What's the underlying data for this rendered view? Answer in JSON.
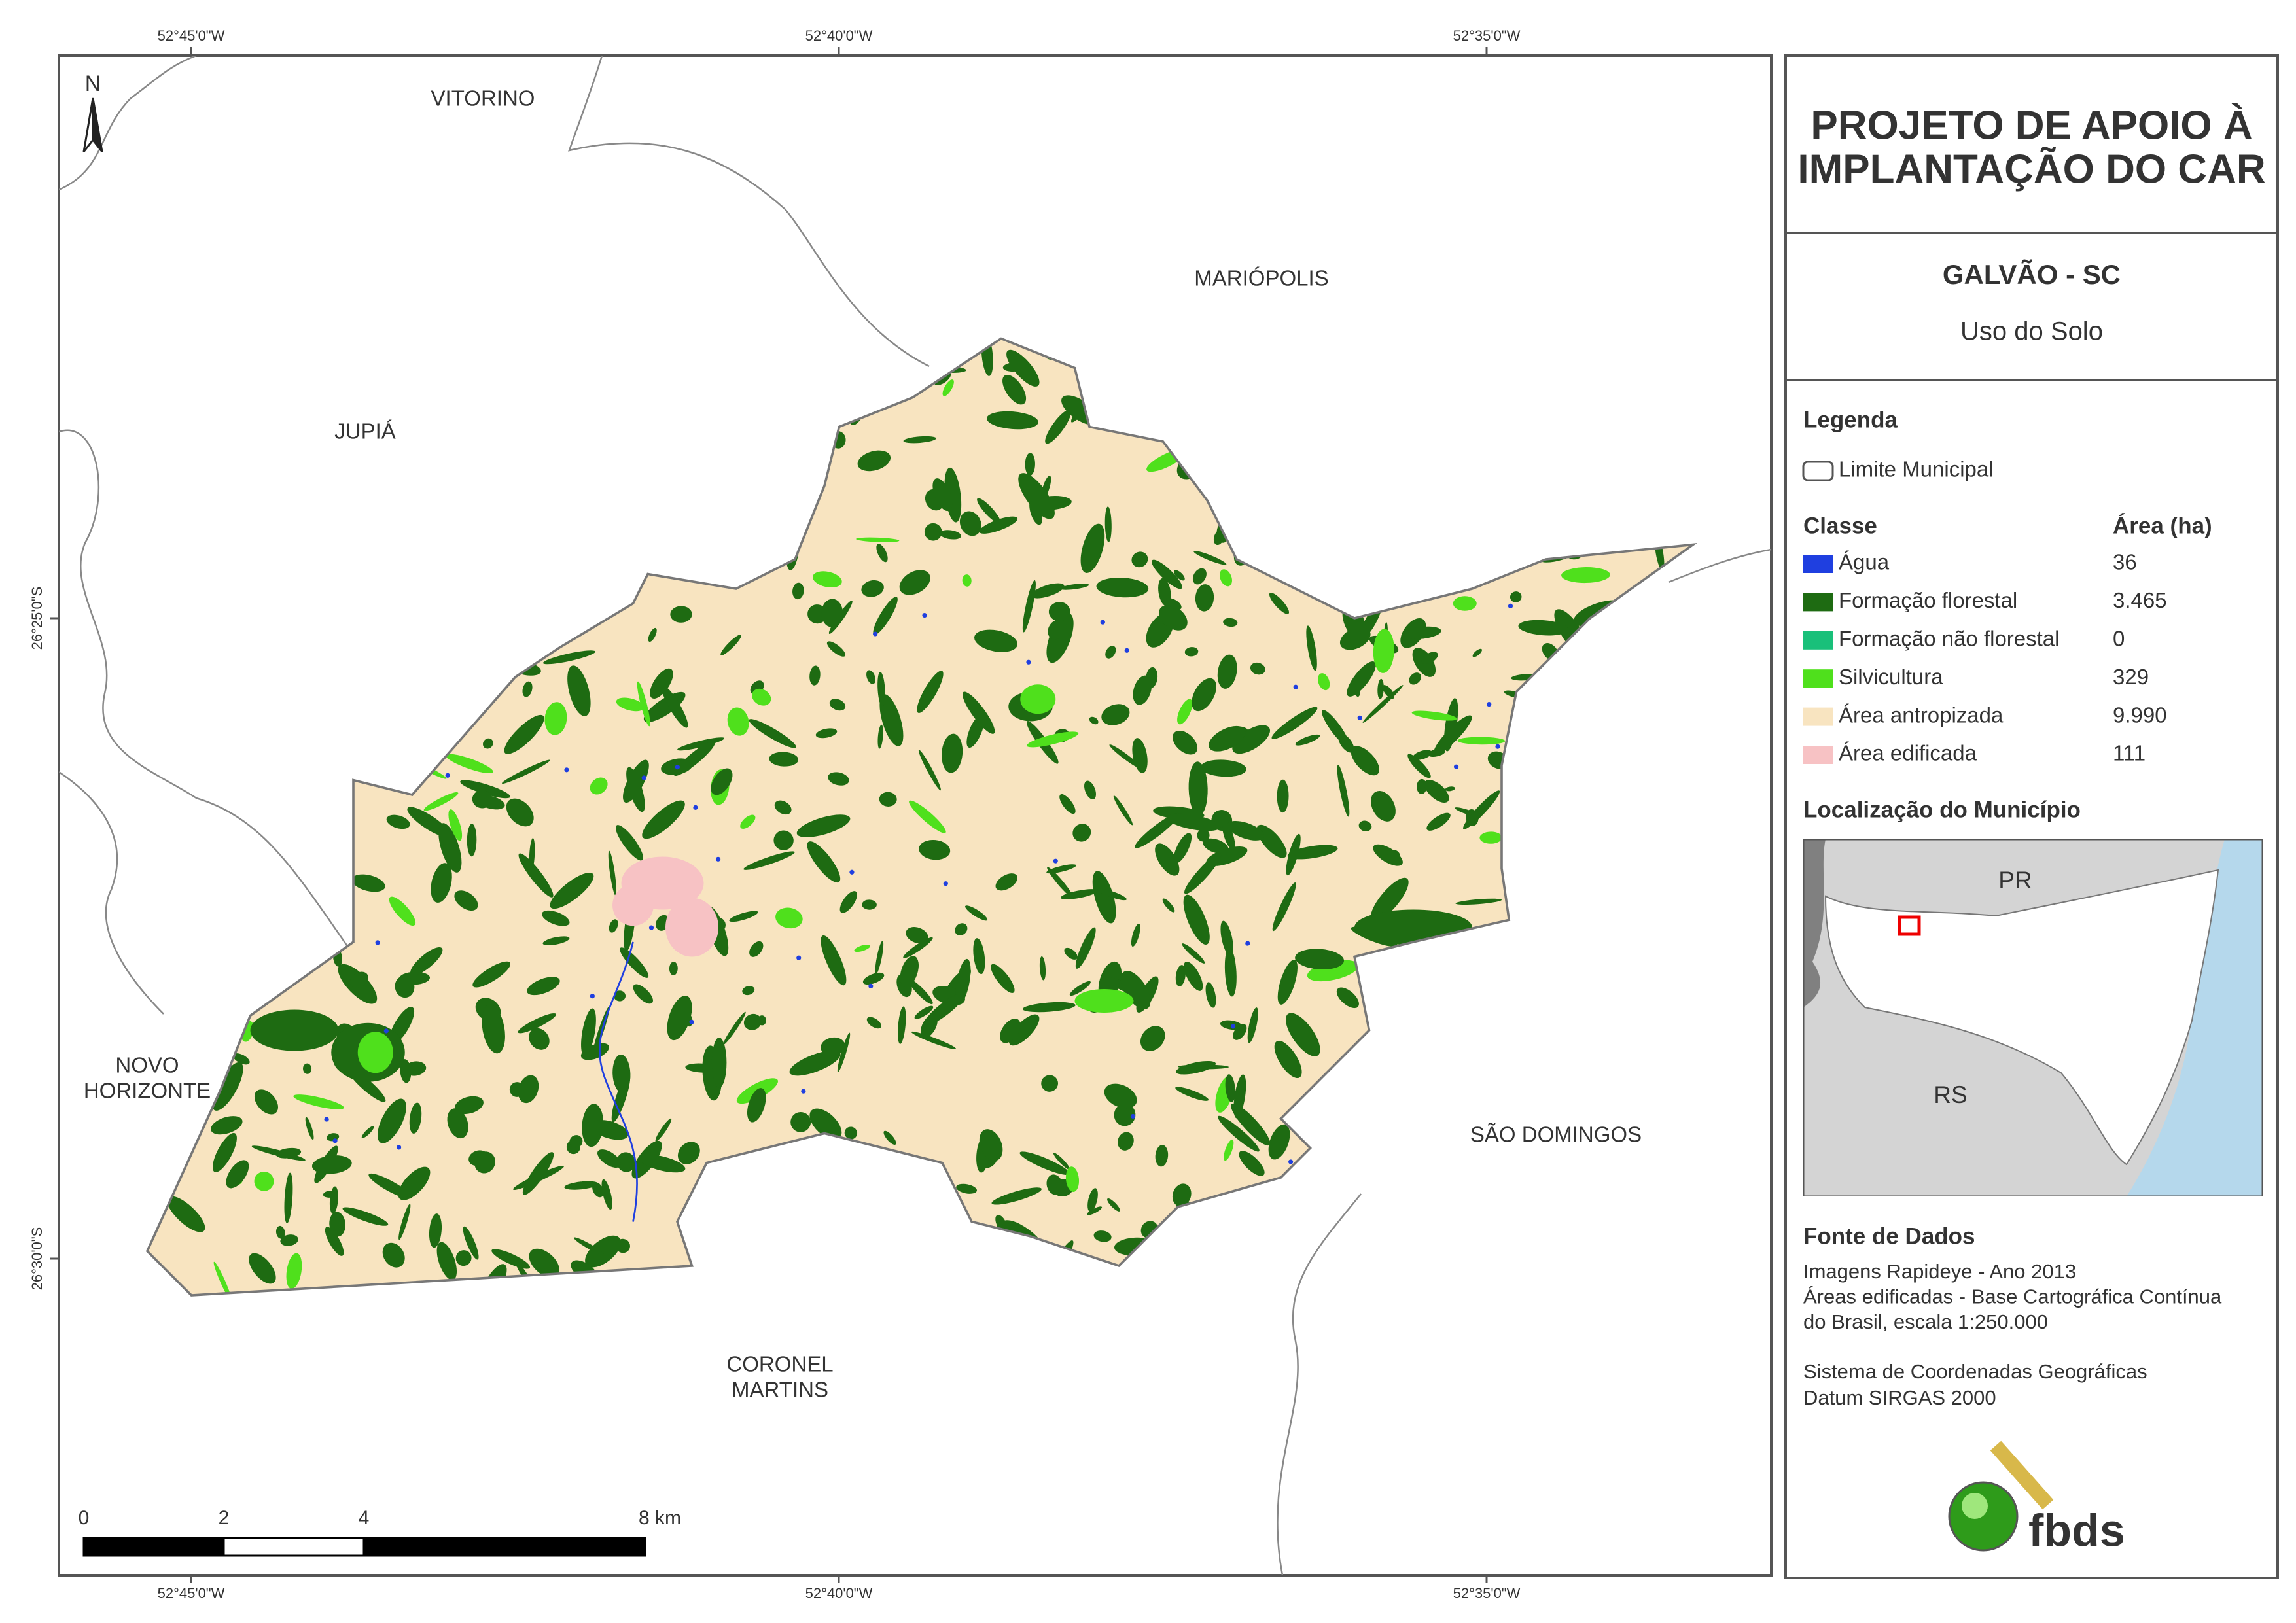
{
  "map": {
    "coordinates": {
      "top": [
        "52°45'0\"W",
        "52°40'0\"W",
        "52°35'0\"W"
      ],
      "bottom": [
        "52°45'0\"W",
        "52°40'0\"W",
        "52°35'0\"W"
      ],
      "left": [
        "26°25'0\"S",
        "26°30'0\"S"
      ]
    },
    "neighbors": [
      {
        "lines": [
          "VITORINO"
        ]
      },
      {
        "lines": [
          "MARIÓPOLIS"
        ]
      },
      {
        "lines": [
          "JUPIÁ"
        ]
      },
      {
        "lines": [
          "NOVO",
          "HORIZONTE"
        ]
      },
      {
        "lines": [
          "SÃO DOMINGOS"
        ]
      },
      {
        "lines": [
          "CORONEL",
          "MARTINS"
        ]
      }
    ],
    "north": "N",
    "scale_bar": [
      "0",
      "2",
      "4",
      "8 km"
    ]
  },
  "panel": {
    "title": [
      "PROJETO DE APOIO À",
      "IMPLANTAÇÃO DO CAR"
    ],
    "municipality": "GALVÃO - SC",
    "subtitle": "Uso do Solo",
    "legend": {
      "title": "Legenda",
      "boundary": "Limite Municipal",
      "class_header": "Classe",
      "area_header": "Área (ha)",
      "classes": [
        {
          "name": "Água",
          "area": "36",
          "color": "#1f3fe0"
        },
        {
          "name": "Formação florestal",
          "area": "3.465",
          "color": "#1e6b12"
        },
        {
          "name": "Formação não florestal",
          "area": "0",
          "color": "#19c07a"
        },
        {
          "name": "Silvicultura",
          "area": "329",
          "color": "#4fe01c"
        },
        {
          "name": "Área antropizada",
          "area": "9.990",
          "color": "#f8e4c0"
        },
        {
          "name": "Área edificada",
          "area": "111",
          "color": "#f7c2c4"
        }
      ]
    },
    "location": {
      "title": "Localização do Município",
      "labels": [
        "PR",
        "RS"
      ]
    },
    "source": {
      "title": "Fonte de Dados",
      "lines": [
        "Imagens Rapideye - Ano 2013",
        "Áreas edificadas - Base Cartográfica Contínua",
        "do Brasil, escala 1:250.000"
      ],
      "crs": [
        "Sistema de Coordenadas Geográficas",
        "Datum SIRGAS 2000"
      ]
    },
    "logo": "fbds"
  }
}
